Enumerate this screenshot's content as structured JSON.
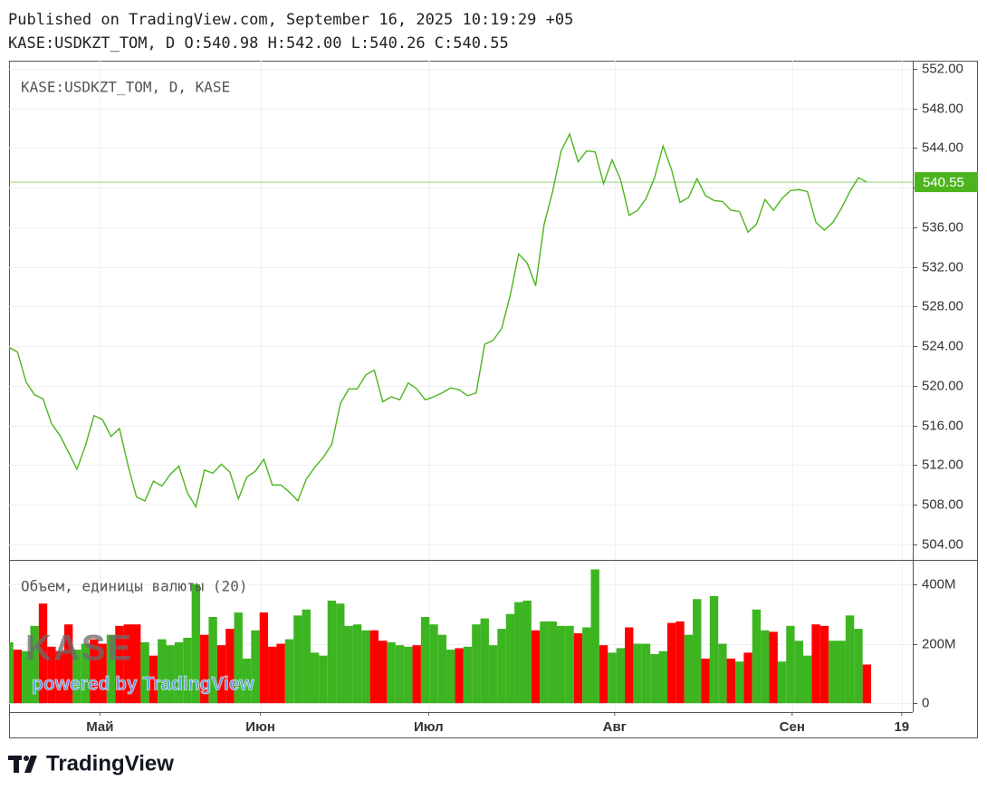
{
  "header": {
    "published": "Published on TradingView.com, September 16, 2025 10:19:29 +05",
    "ohlc": "KASE:USDKZT_TOM, D O:540.98 H:542.00 L:540.26 C:540.55"
  },
  "chart_data": [
    {
      "type": "line",
      "legend": "KASE:USDKZT_TOM, D, KASE",
      "color": "#4cb51e",
      "grid": true,
      "values": [
        523.9,
        523.4,
        520.4,
        519.1,
        518.7,
        516.2,
        515.0,
        513.3,
        511.6,
        514.0,
        517.0,
        516.6,
        514.9,
        515.7,
        512.0,
        508.8,
        508.4,
        510.4,
        509.9,
        511.1,
        511.9,
        509.2,
        507.8,
        511.5,
        511.2,
        512.1,
        511.3,
        508.6,
        510.8,
        511.4,
        512.6,
        510.0,
        510.0,
        509.3,
        508.4,
        510.6,
        511.8,
        512.8,
        514.1,
        518.2,
        519.7,
        519.7,
        521.1,
        521.6,
        518.4,
        518.9,
        518.6,
        520.3,
        519.7,
        518.6,
        518.9,
        519.3,
        519.8,
        519.6,
        519.0,
        519.3,
        524.2,
        524.6,
        525.8,
        529.1,
        533.3,
        532.4,
        530.1,
        536.3,
        539.6,
        543.7,
        545.4,
        542.6,
        543.7,
        543.6,
        540.4,
        542.8,
        540.8,
        537.2,
        537.7,
        538.9,
        541.0,
        544.2,
        541.8,
        538.5,
        539.0,
        540.9,
        539.2,
        538.7,
        538.6,
        537.7,
        537.6,
        535.5,
        536.3,
        538.8,
        537.7,
        538.9,
        539.7,
        539.8,
        539.6,
        536.5,
        535.7,
        536.5,
        537.9,
        539.6,
        541.0,
        540.55
      ],
      "xlim": [
        0,
        106.4
      ],
      "ylim": [
        502.45,
        552.8
      ],
      "yticks": [
        {
          "value": 504,
          "label": "504.00"
        },
        {
          "value": 508,
          "label": "508.00"
        },
        {
          "value": 512,
          "label": "512.00"
        },
        {
          "value": 516,
          "label": "516.00"
        },
        {
          "value": 520,
          "label": "520.00"
        },
        {
          "value": 524,
          "label": "524.00"
        },
        {
          "value": 528,
          "label": "528.00"
        },
        {
          "value": 532,
          "label": "532.00"
        },
        {
          "value": 536,
          "label": "536.00"
        },
        {
          "value": 540,
          "label": "540.00"
        },
        {
          "value": 544,
          "label": "544.00"
        },
        {
          "value": 548,
          "label": "548.00"
        },
        {
          "value": 552,
          "label": "552.00"
        }
      ]
    },
    {
      "type": "bar",
      "legend": "Объем, единицы валюты (20)",
      "grid": true,
      "values": [
        205,
        180,
        175,
        260,
        335,
        190,
        175,
        265,
        180,
        200,
        215,
        200,
        230,
        260,
        265,
        265,
        205,
        160,
        215,
        195,
        205,
        220,
        400,
        230,
        290,
        195,
        250,
        305,
        150,
        245,
        305,
        190,
        200,
        215,
        295,
        315,
        170,
        160,
        345,
        335,
        260,
        265,
        245,
        245,
        210,
        205,
        195,
        190,
        195,
        290,
        265,
        230,
        180,
        185,
        190,
        265,
        285,
        195,
        250,
        300,
        340,
        345,
        245,
        275,
        275,
        260,
        260,
        235,
        255,
        450,
        195,
        170,
        185,
        255,
        200,
        200,
        165,
        175,
        270,
        275,
        230,
        350,
        150,
        360,
        200,
        150,
        140,
        170,
        315,
        245,
        240,
        140,
        260,
        210,
        160,
        265,
        260,
        210,
        210,
        295,
        250,
        130
      ],
      "colors": [
        "#3cb521",
        "#ff0000",
        "#3cb521",
        "#3cb521",
        "#ff0000",
        "#ff0000",
        "#ff0000",
        "#ff0000",
        "#3cb521",
        "#3cb521",
        "#ff0000",
        "#ff0000",
        "#3cb521",
        "#ff0000",
        "#ff0000",
        "#ff0000",
        "#3cb521",
        "#ff0000",
        "#3cb521",
        "#3cb521",
        "#3cb521",
        "#3cb521",
        "#3cb521",
        "#ff0000",
        "#3cb521",
        "#ff0000",
        "#ff0000",
        "#3cb521",
        "#3cb521",
        "#3cb521",
        "#ff0000",
        "#ff0000",
        "#ff0000",
        "#3cb521",
        "#3cb521",
        "#3cb521",
        "#3cb521",
        "#3cb521",
        "#3cb521",
        "#3cb521",
        "#3cb521",
        "#3cb521",
        "#3cb521",
        "#ff0000",
        "#ff0000",
        "#3cb521",
        "#3cb521",
        "#3cb521",
        "#ff0000",
        "#3cb521",
        "#3cb521",
        "#3cb521",
        "#3cb521",
        "#ff0000",
        "#3cb521",
        "#3cb521",
        "#3cb521",
        "#3cb521",
        "#3cb521",
        "#3cb521",
        "#3cb521",
        "#3cb521",
        "#ff0000",
        "#3cb521",
        "#3cb521",
        "#3cb521",
        "#3cb521",
        "#ff0000",
        "#3cb521",
        "#3cb521",
        "#ff0000",
        "#3cb521",
        "#3cb521",
        "#ff0000",
        "#3cb521",
        "#3cb521",
        "#3cb521",
        "#3cb521",
        "#ff0000",
        "#ff0000",
        "#3cb521",
        "#3cb521",
        "#ff0000",
        "#3cb521",
        "#3cb521",
        "#ff0000",
        "#3cb521",
        "#ff0000",
        "#3cb521",
        "#3cb521",
        "#ff0000",
        "#3cb521",
        "#3cb521",
        "#3cb521",
        "#3cb521",
        "#ff0000",
        "#ff0000",
        "#3cb521",
        "#3cb521",
        "#3cb521",
        "#3cb521",
        "#ff0000"
      ],
      "xlim": [
        0,
        106.4
      ],
      "ylim": [
        -30,
        482
      ],
      "yticks": [
        0,
        {
          "value": 200,
          "label": "200M"
        },
        {
          "value": 400,
          "label": "400M"
        }
      ],
      "xticks": [
        {
          "value": 10.7,
          "label": "Май"
        },
        {
          "value": 29.6,
          "label": "Июн"
        },
        {
          "value": 49.4,
          "label": "Июл"
        },
        {
          "value": 71.3,
          "label": "Авг"
        },
        {
          "value": 92.2,
          "label": "Сен"
        },
        {
          "value": 105.1,
          "label": "19"
        }
      ]
    }
  ],
  "watermark": {
    "logo": "KASE",
    "tagline": "powered by TradingView"
  },
  "footer": {
    "brand": "TradingView"
  }
}
